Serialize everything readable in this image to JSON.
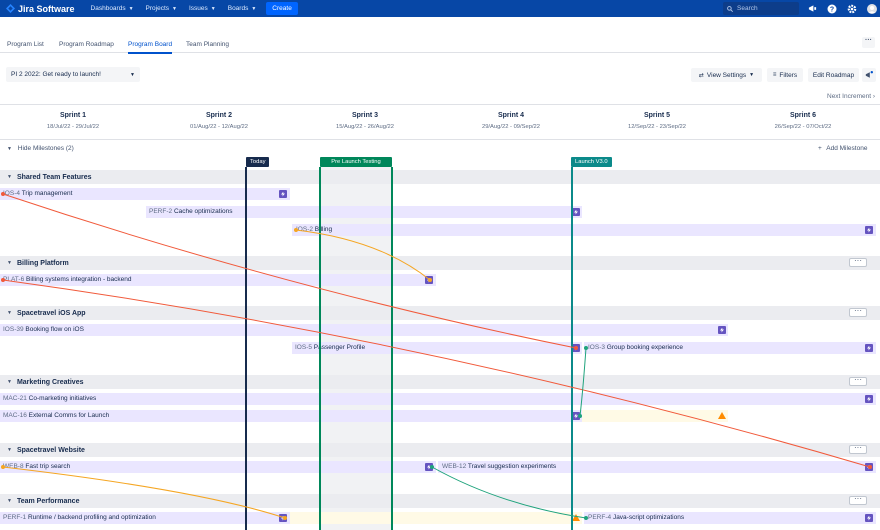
{
  "nav": {
    "product": "Jira Software",
    "items": [
      {
        "label": "Dashboards"
      },
      {
        "label": "Projects"
      },
      {
        "label": "Issues"
      },
      {
        "label": "Boards"
      }
    ],
    "create_label": "Create",
    "search_placeholder": "Search"
  },
  "tabs": [
    "Program List",
    "Program Roadmap",
    "Program Board",
    "Team Planning"
  ],
  "active_tab": "Program Board",
  "toolbar": {
    "pi_select": "PI 2 2022: Get ready to launch!",
    "view_settings": "View Settings",
    "filters": "Filters",
    "edit_roadmap": "Edit Roadmap",
    "next_increment": "Next Increment"
  },
  "sprints": [
    {
      "name": "Sprint 1",
      "dates": "18/Jul/22 - 29/Jul/22"
    },
    {
      "name": "Sprint 2",
      "dates": "01/Aug/22 - 12/Aug/22"
    },
    {
      "name": "Sprint 3",
      "dates": "15/Aug/22 - 26/Aug/22"
    },
    {
      "name": "Sprint 4",
      "dates": "29/Aug/22 - 09/Sep/22"
    },
    {
      "name": "Sprint 5",
      "dates": "12/Sep/22 - 23/Sep/22"
    },
    {
      "name": "Sprint 6",
      "dates": "26/Sep/22 - 07/Oct/22"
    }
  ],
  "milestones": {
    "toggle": "Hide Milestones (2)",
    "add": "Add Milestone",
    "today": "Today",
    "pre_launch": "Pre Launch Testing",
    "launch": "Launch V3.0"
  },
  "teams": [
    {
      "name": "Shared Team Features",
      "features": [
        {
          "key": "IOS-4",
          "title": "Trip management"
        },
        {
          "key": "PERF-2",
          "title": "Cache optimizations"
        },
        {
          "key": "IOS-2",
          "title": "Billing"
        }
      ]
    },
    {
      "name": "Billing Platform",
      "features": [
        {
          "key": "PLAT-6",
          "title": "Billing systems integration - backend"
        }
      ]
    },
    {
      "name": "Spacetravel iOS App",
      "features": [
        {
          "key": "IOS-39",
          "title": "Booking flow on iOS"
        },
        {
          "key": "IOS-5",
          "title": "Passenger Profile"
        },
        {
          "key": "IOS-3",
          "title": "Group booking experience"
        }
      ]
    },
    {
      "name": "Marketing Creatives",
      "features": [
        {
          "key": "MAC-21",
          "title": "Co-marketing initiatives"
        },
        {
          "key": "MAC-16",
          "title": "External Comms for Launch"
        }
      ]
    },
    {
      "name": "Spacetravel Website",
      "features": [
        {
          "key": "WEB-8",
          "title": "Fast trip search"
        },
        {
          "key": "WEB-12",
          "title": "Travel suggestion experiments"
        }
      ]
    },
    {
      "name": "Team Performance",
      "features": [
        {
          "key": "PERF-1",
          "title": "Runtime / backend profiling and optimization"
        },
        {
          "key": "PERF-4",
          "title": "Java-script optimizations"
        }
      ]
    }
  ],
  "colors": {
    "nav_bg": "#0747a6",
    "epic": "#6554c0",
    "dep_red": "#f15a3b",
    "dep_orange": "#f5a623",
    "dep_green": "#1fa37c",
    "milestone_green": "#00875a",
    "launch_teal": "#0b8a8a"
  }
}
